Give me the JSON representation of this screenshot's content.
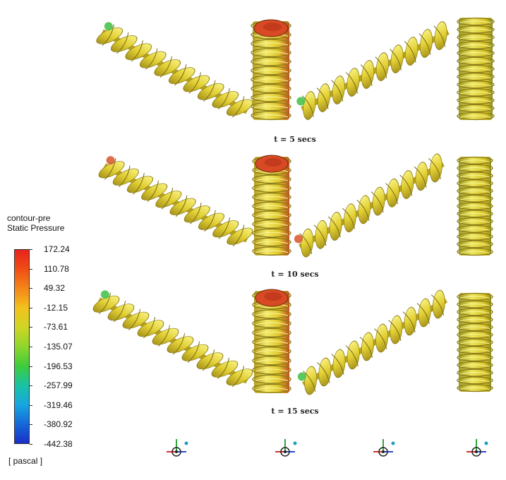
{
  "legend": {
    "title_line1": "contour-pre",
    "title_line2": "Static Pressure",
    "unit": "[ pascal ]",
    "ticks": [
      "172.24",
      "110.78",
      "49.32",
      "-12.15",
      "-73.61",
      "-135.07",
      "-196.53",
      "-257.99",
      "-319.46",
      "-380.92",
      "-442.38"
    ],
    "colors": [
      "#e8231c",
      "#f04d14",
      "#f5861a",
      "#f2c21d",
      "#cfd524",
      "#8ed62c",
      "#3fcc3c",
      "#19c2a4",
      "#17a6e0",
      "#1569d8",
      "#1a2fc8"
    ]
  },
  "time_labels": [
    "t = 5 secs",
    "t = 10 secs",
    "t = 15 secs"
  ],
  "colors": {
    "screw_body": "#e6d43a",
    "screw_dark": "#9a8a1a",
    "screw_highlight": "#f5ef7a",
    "pressure_high": "#e0502a",
    "pressure_low": "#38c24a"
  }
}
